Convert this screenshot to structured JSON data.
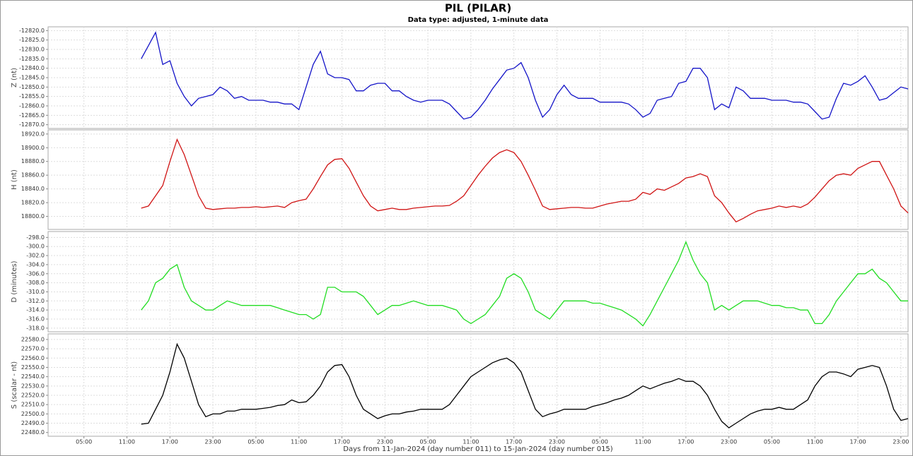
{
  "chart_data": [
    {
      "type": "line",
      "title": "PIL (PILAR)",
      "subtitle": "Data type: adjusted, 1-minute data",
      "ylabel": "Z (nt)",
      "color": "#1414c8",
      "ylim": [
        -12872,
        -12818
      ],
      "yticks": [
        {
          "value": -12870,
          "label": "-12870.0"
        },
        {
          "value": -12865,
          "label": "-12865.0"
        },
        {
          "value": -12860,
          "label": "-12860.0"
        },
        {
          "value": -12855,
          "label": "-12855.0"
        },
        {
          "value": -12850,
          "label": "-12850.0"
        },
        {
          "value": -12845,
          "label": "-12845.0"
        },
        {
          "value": -12840,
          "label": "-12840.0"
        },
        {
          "value": -12835,
          "label": "-12835.0"
        },
        {
          "value": -12830,
          "label": "-12830.0"
        },
        {
          "value": -12825,
          "label": "-12825.0"
        },
        {
          "value": -12820,
          "label": "-12820.0"
        }
      ],
      "x": [
        13,
        14,
        15,
        16,
        17,
        18,
        19,
        20,
        21,
        22,
        23,
        24,
        25,
        26,
        27,
        28,
        29,
        30,
        31,
        32,
        33,
        34,
        35,
        36,
        37,
        38,
        39,
        40,
        41,
        42,
        43,
        44,
        45,
        46,
        47,
        48,
        49,
        50,
        51,
        52,
        53,
        54,
        55,
        56,
        57,
        58,
        59,
        60,
        61,
        62,
        63,
        64,
        65,
        66,
        67,
        68,
        69,
        70,
        71,
        72,
        73,
        74,
        75,
        76,
        77,
        78,
        79,
        80,
        81,
        82,
        83,
        84,
        85,
        86,
        87,
        88,
        89,
        90,
        91,
        92,
        93,
        94,
        95,
        96,
        97,
        98,
        99,
        100,
        101,
        102,
        103,
        104,
        105,
        106,
        107,
        108,
        109,
        110,
        111,
        112,
        113,
        114,
        115,
        116,
        117,
        118,
        119,
        120
      ],
      "values": [
        -12835,
        -12828,
        -12821,
        -12838,
        -12836,
        -12848,
        -12855,
        -12860,
        -12856,
        -12855,
        -12854,
        -12850,
        -12852,
        -12856,
        -12855,
        -12857,
        -12857,
        -12857,
        -12858,
        -12858,
        -12859,
        -12859,
        -12862,
        -12850,
        -12838,
        -12831,
        -12843,
        -12845,
        -12845,
        -12846,
        -12852,
        -12852,
        -12849,
        -12848,
        -12848,
        -12852,
        -12852,
        -12855,
        -12857,
        -12858,
        -12857,
        -12857,
        -12857,
        -12859,
        -12863,
        -12867,
        -12866,
        -12862,
        -12857,
        -12851,
        -12846,
        -12841,
        -12840,
        -12837,
        -12845,
        -12857,
        -12866,
        -12862,
        -12854,
        -12849,
        -12854,
        -12856,
        -12856,
        -12856,
        -12858,
        -12858,
        -12858,
        -12858,
        -12859,
        -12862,
        -12866,
        -12864,
        -12857,
        -12856,
        -12855,
        -12848,
        -12847,
        -12840,
        -12840,
        -12845,
        -12862,
        -12859,
        -12861,
        -12850,
        -12852,
        -12856,
        -12856,
        -12856,
        -12857,
        -12857,
        -12857,
        -12858,
        -12858,
        -12859,
        -12863,
        -12867,
        -12866,
        -12856,
        -12848,
        -12849,
        -12847,
        -12844,
        -12850,
        -12857,
        -12856,
        -12853,
        -12850,
        -12851
      ]
    },
    {
      "type": "line",
      "ylabel": "H (nt)",
      "color": "#d01414",
      "ylim": [
        18781,
        18926
      ],
      "yticks": [
        {
          "value": 18800,
          "label": "18800.0"
        },
        {
          "value": 18820,
          "label": "18820.0"
        },
        {
          "value": 18840,
          "label": "18840.0"
        },
        {
          "value": 18860,
          "label": "18860.0"
        },
        {
          "value": 18880,
          "label": "18880.0"
        },
        {
          "value": 18900,
          "label": "18900.0"
        },
        {
          "value": 18920,
          "label": "18920.0"
        }
      ],
      "x": [
        13,
        14,
        15,
        16,
        17,
        18,
        19,
        20,
        21,
        22,
        23,
        24,
        25,
        26,
        27,
        28,
        29,
        30,
        31,
        32,
        33,
        34,
        35,
        36,
        37,
        38,
        39,
        40,
        41,
        42,
        43,
        44,
        45,
        46,
        47,
        48,
        49,
        50,
        51,
        52,
        53,
        54,
        55,
        56,
        57,
        58,
        59,
        60,
        61,
        62,
        63,
        64,
        65,
        66,
        67,
        68,
        69,
        70,
        71,
        72,
        73,
        74,
        75,
        76,
        77,
        78,
        79,
        80,
        81,
        82,
        83,
        84,
        85,
        86,
        87,
        88,
        89,
        90,
        91,
        92,
        93,
        94,
        95,
        96,
        97,
        98,
        99,
        100,
        101,
        102,
        103,
        104,
        105,
        106,
        107,
        108,
        109,
        110,
        111,
        112,
        113,
        114,
        115,
        116,
        117,
        118,
        119,
        120
      ],
      "values": [
        18812,
        18815,
        18830,
        18845,
        18880,
        18912,
        18890,
        18860,
        18830,
        18812,
        18810,
        18811,
        18812,
        18812,
        18813,
        18813,
        18814,
        18813,
        18814,
        18815,
        18813,
        18820,
        18823,
        18825,
        18840,
        18858,
        18875,
        18883,
        18884,
        18870,
        18850,
        18830,
        18815,
        18808,
        18810,
        18812,
        18810,
        18810,
        18812,
        18813,
        18814,
        18815,
        18815,
        18816,
        18822,
        18830,
        18845,
        18860,
        18873,
        18885,
        18893,
        18897,
        18893,
        18880,
        18860,
        18838,
        18815,
        18810,
        18811,
        18812,
        18813,
        18813,
        18812,
        18812,
        18815,
        18818,
        18820,
        18822,
        18822,
        18825,
        18835,
        18832,
        18840,
        18838,
        18843,
        18848,
        18856,
        18858,
        18862,
        18858,
        18830,
        18820,
        18805,
        18792,
        18797,
        18803,
        18808,
        18810,
        18812,
        18815,
        18813,
        18815,
        18813,
        18818,
        18828,
        18840,
        18852,
        18860,
        18862,
        18860,
        18870,
        18875,
        18880,
        18880,
        18860,
        18840,
        18815,
        18805
      ]
    },
    {
      "type": "line",
      "ylabel": "D (minutes)",
      "color": "#22dd22",
      "ylim": [
        -318.8,
        -296.7
      ],
      "yticks": [
        {
          "value": -318,
          "label": "-318.0"
        },
        {
          "value": -316,
          "label": "-316.0"
        },
        {
          "value": -314,
          "label": "-314.0"
        },
        {
          "value": -312,
          "label": "-312.0"
        },
        {
          "value": -310,
          "label": "-310.0"
        },
        {
          "value": -308,
          "label": "-308.0"
        },
        {
          "value": -306,
          "label": "-306.0"
        },
        {
          "value": -304,
          "label": "-304.0"
        },
        {
          "value": -302,
          "label": "-302.0"
        },
        {
          "value": -300,
          "label": "-300.0"
        },
        {
          "value": -298,
          "label": "-298.0"
        }
      ],
      "x": [
        13,
        14,
        15,
        16,
        17,
        18,
        19,
        20,
        21,
        22,
        23,
        24,
        25,
        26,
        27,
        28,
        29,
        30,
        31,
        32,
        33,
        34,
        35,
        36,
        37,
        38,
        39,
        40,
        41,
        42,
        43,
        44,
        45,
        46,
        47,
        48,
        49,
        50,
        51,
        52,
        53,
        54,
        55,
        56,
        57,
        58,
        59,
        60,
        61,
        62,
        63,
        64,
        65,
        66,
        67,
        68,
        69,
        70,
        71,
        72,
        73,
        74,
        75,
        76,
        77,
        78,
        79,
        80,
        81,
        82,
        83,
        84,
        85,
        86,
        87,
        88,
        89,
        90,
        91,
        92,
        93,
        94,
        95,
        96,
        97,
        98,
        99,
        100,
        101,
        102,
        103,
        104,
        105,
        106,
        107,
        108,
        109,
        110,
        111,
        112,
        113,
        114,
        115,
        116,
        117,
        118,
        119,
        120
      ],
      "values": [
        -314,
        -312,
        -308,
        -307,
        -305,
        -304,
        -309,
        -312,
        -313,
        -314,
        -314,
        -313,
        -312,
        -312.5,
        -313,
        -313,
        -313,
        -313,
        -313,
        -313.5,
        -314,
        -314.5,
        -315,
        -315,
        -316,
        -315,
        -309,
        -309,
        -310,
        -310,
        -310,
        -311,
        -313,
        -315,
        -314,
        -313,
        -313,
        -312.5,
        -312,
        -312.5,
        -313,
        -313,
        -313,
        -313.5,
        -314,
        -316,
        -317,
        -316,
        -315,
        -313,
        -311,
        -307,
        -306,
        -307,
        -310,
        -314,
        -315,
        -316,
        -314,
        -312,
        -312,
        -312,
        -312,
        -312.5,
        -312.5,
        -313,
        -313.5,
        -314,
        -315,
        -316,
        -317.5,
        -315,
        -312,
        -309,
        -306,
        -303,
        -299,
        -303,
        -306,
        -308,
        -314,
        -313,
        -314,
        -313,
        -312,
        -312,
        -312,
        -312.5,
        -313,
        -313,
        -313.5,
        -313.5,
        -314,
        -314,
        -317,
        -317,
        -315,
        -312,
        -310,
        -308,
        -306,
        -306,
        -305,
        -307,
        -308,
        -310,
        -312,
        -312
      ]
    },
    {
      "type": "line",
      "ylabel": "S (scalar - nt)",
      "color": "#000000",
      "xlabel": "Days from 11-Jan-2024 (day number 011) to 15-Jan-2024 (day number 015)",
      "xlim": [
        0,
        120
      ],
      "xticks": [
        {
          "value": 5,
          "label": "05:00"
        },
        {
          "value": 11,
          "label": "11:00"
        },
        {
          "value": 17,
          "label": "17:00"
        },
        {
          "value": 23,
          "label": "23:00"
        },
        {
          "value": 29,
          "label": "05:00"
        },
        {
          "value": 35,
          "label": "11:00"
        },
        {
          "value": 41,
          "label": "17:00"
        },
        {
          "value": 47,
          "label": "23:00"
        },
        {
          "value": 53,
          "label": "05:00"
        },
        {
          "value": 59,
          "label": "11:00"
        },
        {
          "value": 65,
          "label": "17:00"
        },
        {
          "value": 71,
          "label": "23:00"
        },
        {
          "value": 77,
          "label": "05:00"
        },
        {
          "value": 83,
          "label": "11:00"
        },
        {
          "value": 89,
          "label": "17:00"
        },
        {
          "value": 95,
          "label": "23:00"
        },
        {
          "value": 101,
          "label": "05:00"
        },
        {
          "value": 107,
          "label": "11:00"
        },
        {
          "value": 113,
          "label": "17:00"
        },
        {
          "value": 119,
          "label": "23:00"
        }
      ],
      "ylim": [
        22476,
        22586
      ],
      "yticks": [
        {
          "value": 22480,
          "label": "22480.0"
        },
        {
          "value": 22490,
          "label": "22490.0"
        },
        {
          "value": 22500,
          "label": "22500.0"
        },
        {
          "value": 22510,
          "label": "22510.0"
        },
        {
          "value": 22520,
          "label": "22520.0"
        },
        {
          "value": 22530,
          "label": "22530.0"
        },
        {
          "value": 22540,
          "label": "22540.0"
        },
        {
          "value": 22550,
          "label": "22550.0"
        },
        {
          "value": 22560,
          "label": "22560.0"
        },
        {
          "value": 22570,
          "label": "22570.0"
        },
        {
          "value": 22580,
          "label": "22580.0"
        }
      ],
      "x": [
        13,
        14,
        15,
        16,
        17,
        18,
        19,
        20,
        21,
        22,
        23,
        24,
        25,
        26,
        27,
        28,
        29,
        30,
        31,
        32,
        33,
        34,
        35,
        36,
        37,
        38,
        39,
        40,
        41,
        42,
        43,
        44,
        45,
        46,
        47,
        48,
        49,
        50,
        51,
        52,
        53,
        54,
        55,
        56,
        57,
        58,
        59,
        60,
        61,
        62,
        63,
        64,
        65,
        66,
        67,
        68,
        69,
        70,
        71,
        72,
        73,
        74,
        75,
        76,
        77,
        78,
        79,
        80,
        81,
        82,
        83,
        84,
        85,
        86,
        87,
        88,
        89,
        90,
        91,
        92,
        93,
        94,
        95,
        96,
        97,
        98,
        99,
        100,
        101,
        102,
        103,
        104,
        105,
        106,
        107,
        108,
        109,
        110,
        111,
        112,
        113,
        114,
        115,
        116,
        117,
        118,
        119,
        120
      ],
      "values": [
        22489,
        22490,
        22505,
        22520,
        22545,
        22575,
        22560,
        22535,
        22510,
        22497,
        22500,
        22500,
        22503,
        22503,
        22505,
        22505,
        22505,
        22506,
        22507,
        22509,
        22510,
        22515,
        22512,
        22513,
        22520,
        22530,
        22545,
        22552,
        22553,
        22540,
        22520,
        22505,
        22500,
        22495,
        22498,
        22500,
        22500,
        22502,
        22503,
        22505,
        22505,
        22505,
        22505,
        22510,
        22520,
        22530,
        22540,
        22545,
        22550,
        22555,
        22558,
        22560,
        22555,
        22545,
        22525,
        22505,
        22497,
        22500,
        22502,
        22505,
        22505,
        22505,
        22505,
        22508,
        22510,
        22512,
        22515,
        22517,
        22520,
        22525,
        22530,
        22527,
        22530,
        22533,
        22535,
        22538,
        22535,
        22535,
        22530,
        22520,
        22505,
        22492,
        22485,
        22490,
        22495,
        22500,
        22503,
        22505,
        22505,
        22507,
        22505,
        22505,
        22510,
        22515,
        22530,
        22540,
        22545,
        22545,
        22543,
        22540,
        22548,
        22550,
        22552,
        22550,
        22530,
        22505,
        22493,
        22495
      ]
    }
  ]
}
